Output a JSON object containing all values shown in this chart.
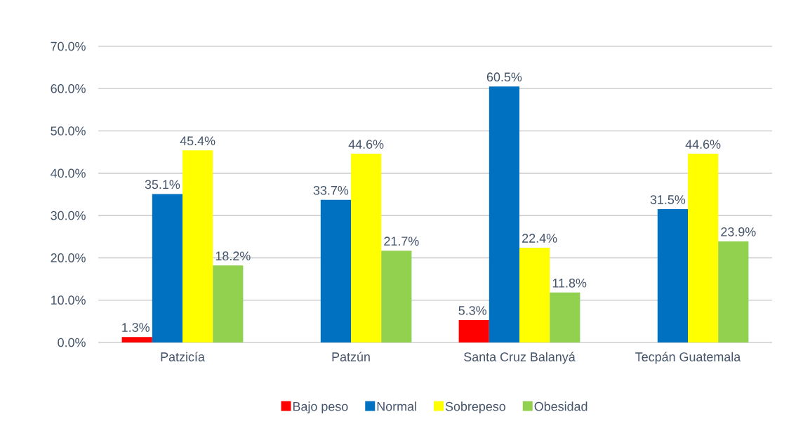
{
  "chart_data": {
    "type": "bar",
    "categories": [
      "Patzicía",
      "Patzún",
      "Santa Cruz Balanyá",
      "Tecpán Guatemala"
    ],
    "series": [
      {
        "name": "Bajo peso",
        "color": "#ff0000",
        "values": [
          1.3,
          0,
          5.3,
          0
        ],
        "value_labels": [
          "1.3%",
          null,
          "5.3%",
          null
        ]
      },
      {
        "name": "Normal",
        "color": "#0070c0",
        "values": [
          35.1,
          33.7,
          60.5,
          31.5
        ],
        "value_labels": [
          "35.1%",
          "33.7%",
          "60.5%",
          "31.5%"
        ]
      },
      {
        "name": "Sobrepeso",
        "color": "#ffff00",
        "values": [
          45.4,
          44.6,
          22.4,
          44.6
        ],
        "value_labels": [
          "45.4%",
          "44.6%",
          "22.4%",
          "44.6%"
        ]
      },
      {
        "name": "Obesidad",
        "color": "#92d050",
        "values": [
          18.2,
          21.7,
          11.8,
          23.9
        ],
        "value_labels": [
          "18.2%",
          "21.7%",
          "11.8%",
          "23.9%"
        ]
      }
    ],
    "ylim": [
      0,
      70
    ],
    "yticks": [
      {
        "value": 0,
        "label": "0.0%"
      },
      {
        "value": 10,
        "label": "10.0%"
      },
      {
        "value": 20,
        "label": "20.0%"
      },
      {
        "value": 30,
        "label": "30.0%"
      },
      {
        "value": 40,
        "label": "40.0%"
      },
      {
        "value": 50,
        "label": "50.0%"
      },
      {
        "value": 60,
        "label": "60.0%"
      },
      {
        "value": 70,
        "label": "70.0%"
      }
    ],
    "grid": "y",
    "legend": "bottom"
  }
}
